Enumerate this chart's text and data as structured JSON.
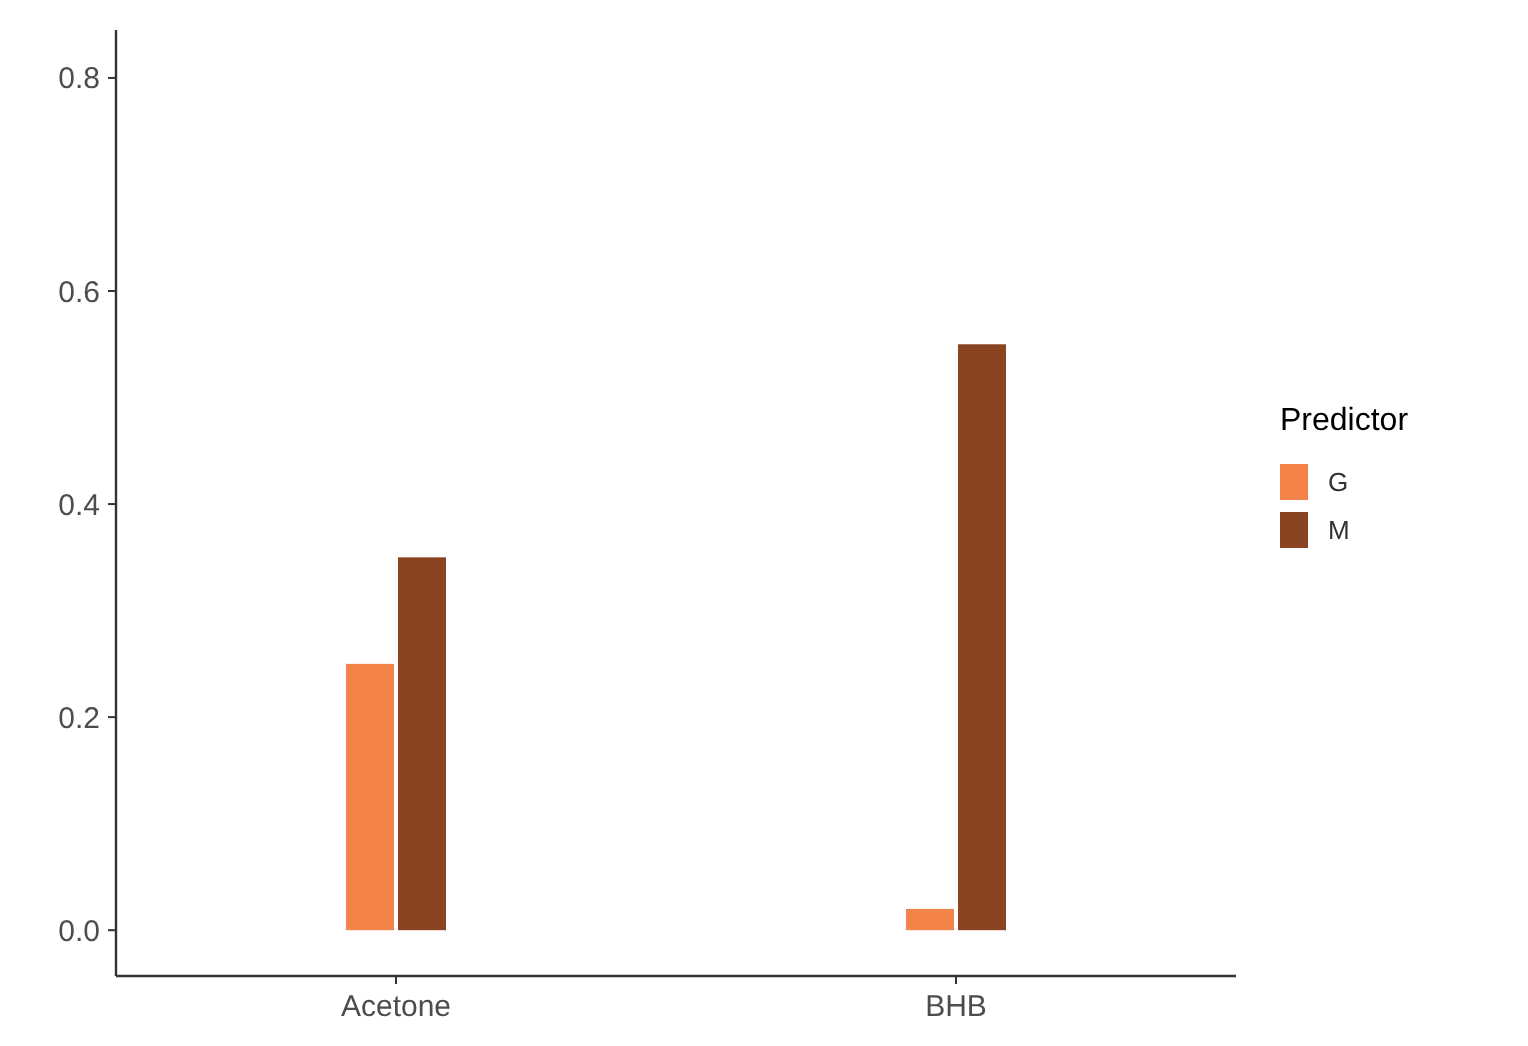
{
  "chart_data": {
    "type": "bar",
    "categories": [
      "Acetone",
      "BHB"
    ],
    "series": [
      {
        "name": "G",
        "color": "#f4834a",
        "values": [
          0.25,
          0.02
        ]
      },
      {
        "name": "M",
        "color": "#8b4422",
        "values": [
          0.35,
          0.55
        ]
      }
    ],
    "ylim": [
      -0.043,
      0.845
    ],
    "yticks": [
      {
        "value": 0,
        "label": "0.0"
      },
      {
        "value": 0.2,
        "label": "0.2"
      },
      {
        "value": 0.4,
        "label": "0.4"
      },
      {
        "value": 0.6,
        "label": "0.6"
      },
      {
        "value": 0.8,
        "label": "0.8"
      }
    ],
    "legend_title": "Predictor",
    "legend": "right",
    "grid": false
  }
}
